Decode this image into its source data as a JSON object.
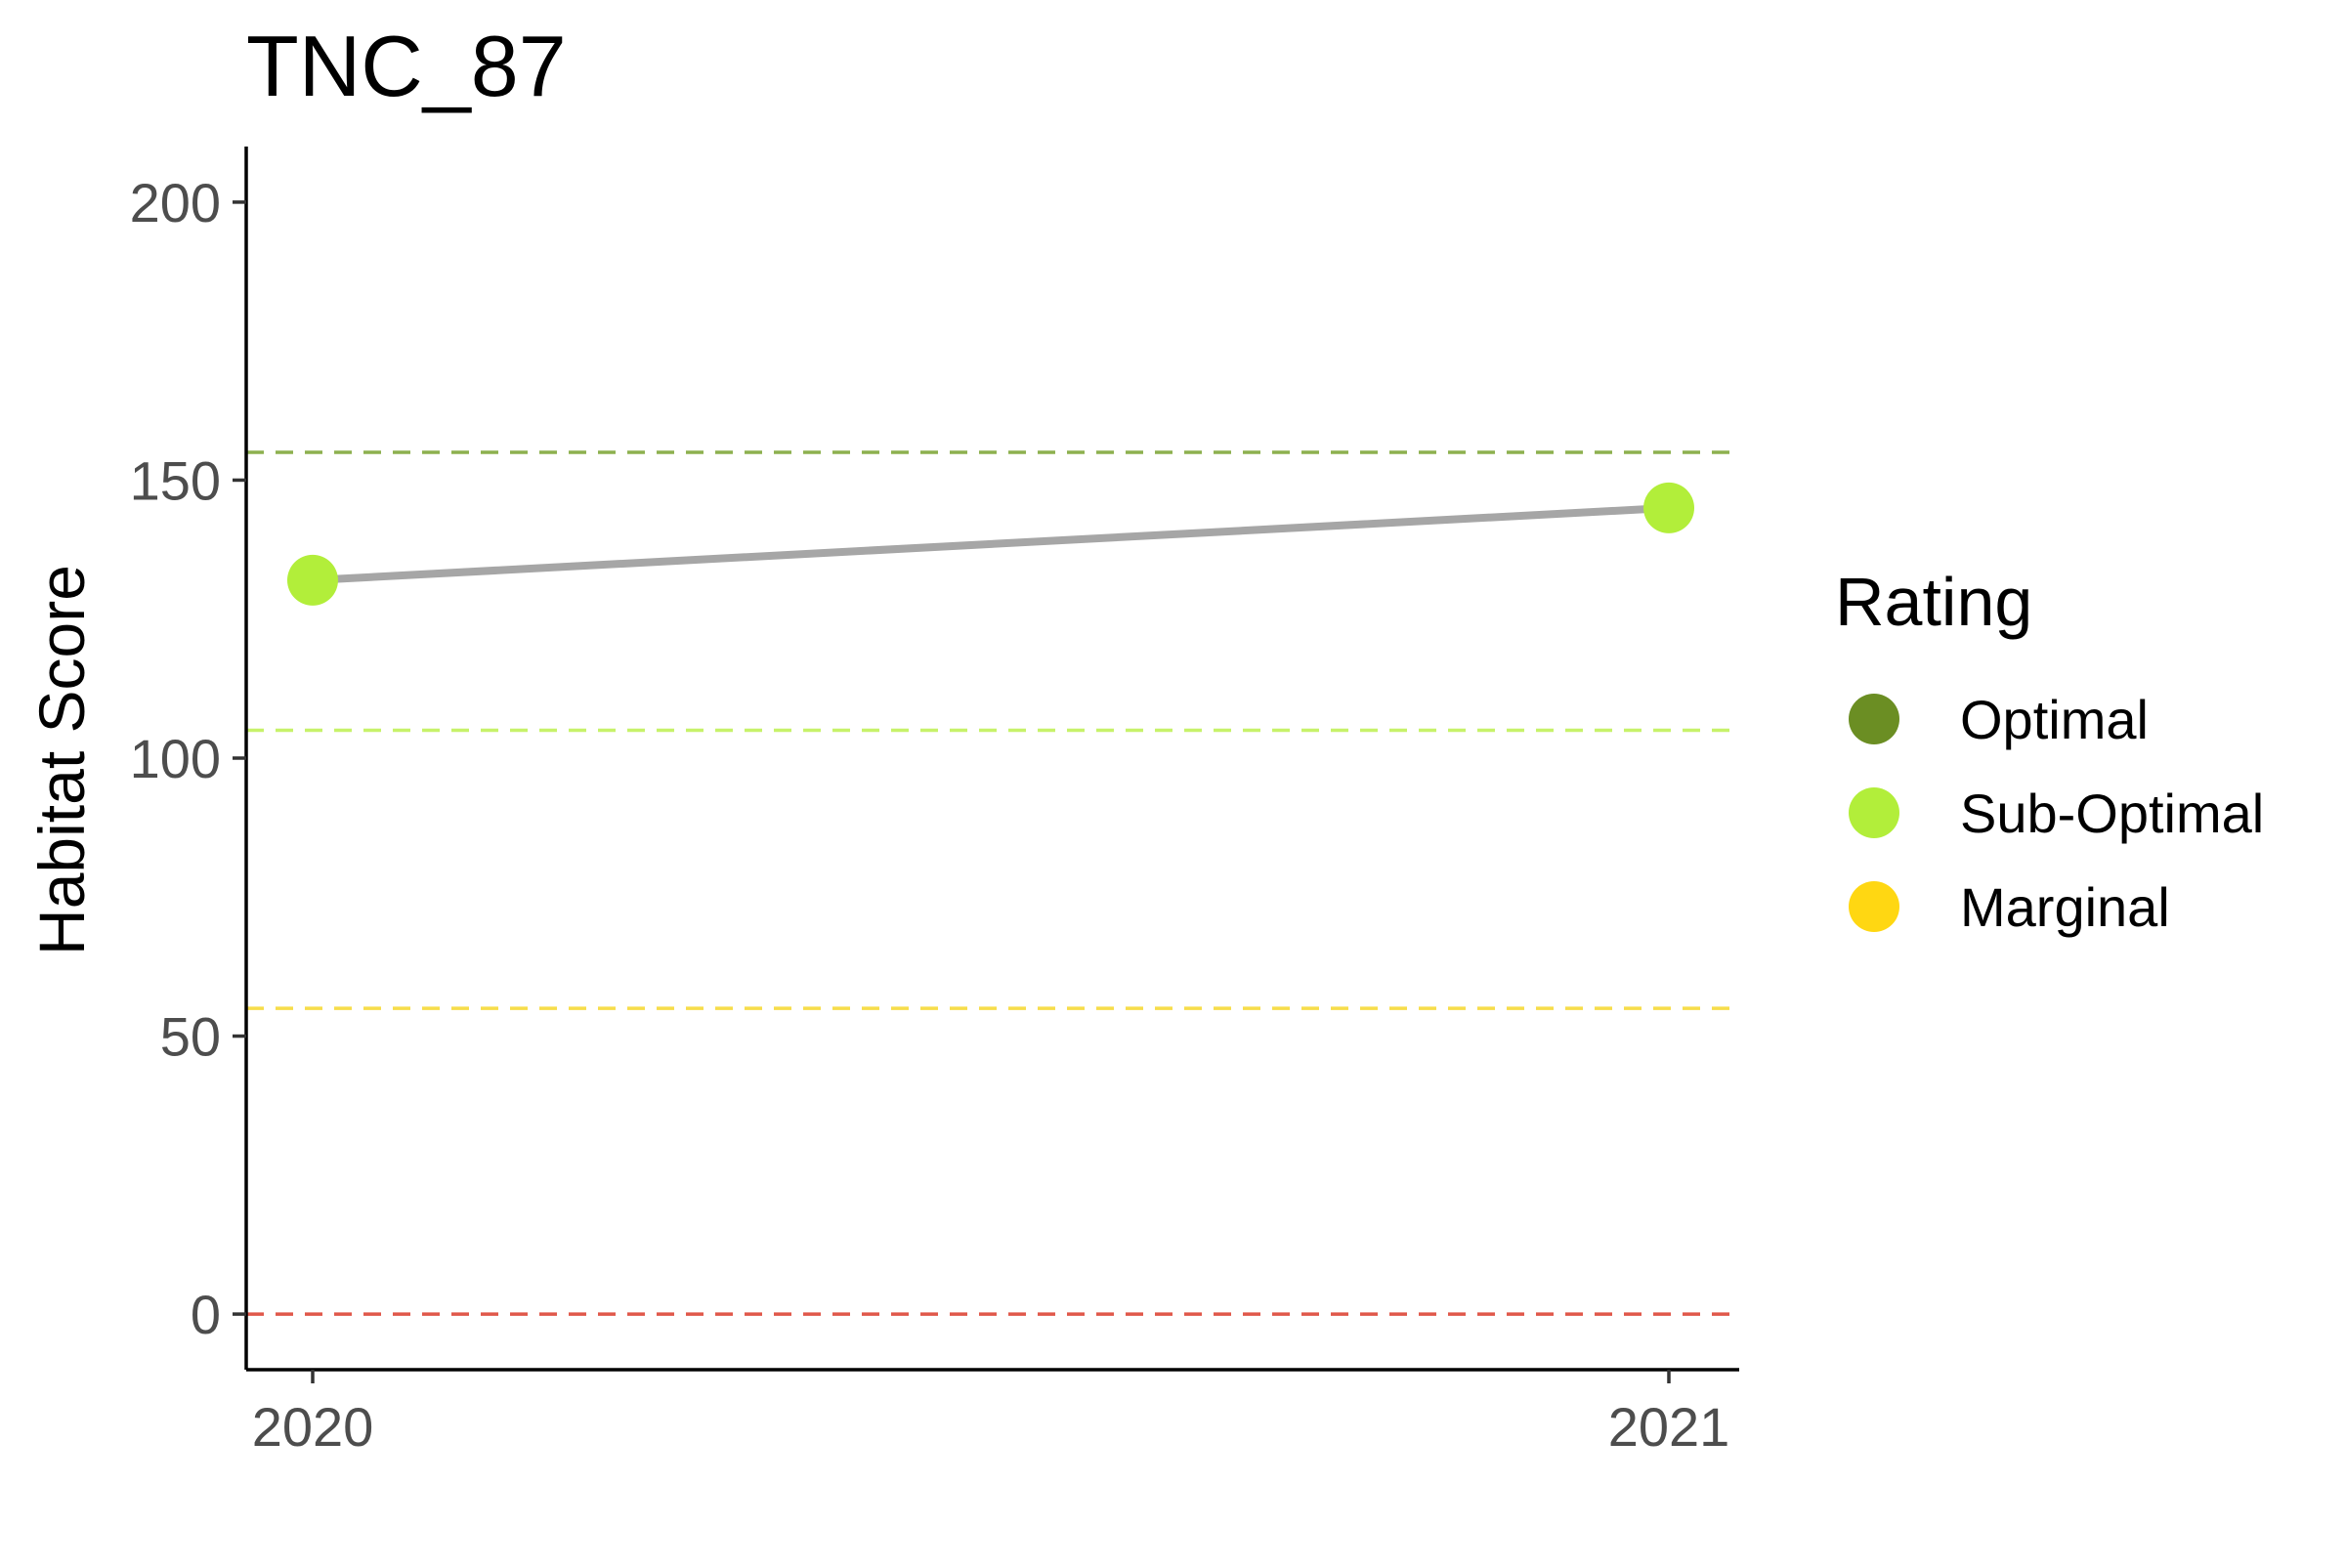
{
  "chart_data": {
    "type": "line",
    "title": "TNC_87",
    "xlabel": "",
    "ylabel": "Habitat Score",
    "x": [
      "2020",
      "2021"
    ],
    "series": [
      {
        "values": [
          132,
          145
        ],
        "point_ratings": [
          "Sub-Optimal",
          "Sub-Optimal"
        ],
        "line_color": "#a6a6a6"
      }
    ],
    "ylim": [
      -10,
      210
    ],
    "y_ticks": [
      0,
      50,
      100,
      150,
      200
    ],
    "y_tick_labels": [
      "0",
      "50",
      "100",
      "150",
      "200"
    ],
    "reference_lines": [
      {
        "y": 155,
        "color": "#8db04f",
        "style": "dashed"
      },
      {
        "y": 105,
        "color": "#c7f26a",
        "style": "dashed"
      },
      {
        "y": 55,
        "color": "#f7dd4a",
        "style": "dashed"
      },
      {
        "y": 0,
        "color": "#e0584a",
        "style": "dashed"
      }
    ],
    "grid": false,
    "legend": {
      "title": "Rating",
      "placement": "right",
      "entries": [
        {
          "label": "Optimal",
          "color": "#6b8e23"
        },
        {
          "label": "Sub-Optimal",
          "color": "#b2ee3a"
        },
        {
          "label": "Marginal",
          "color": "#ffd712"
        }
      ]
    }
  }
}
